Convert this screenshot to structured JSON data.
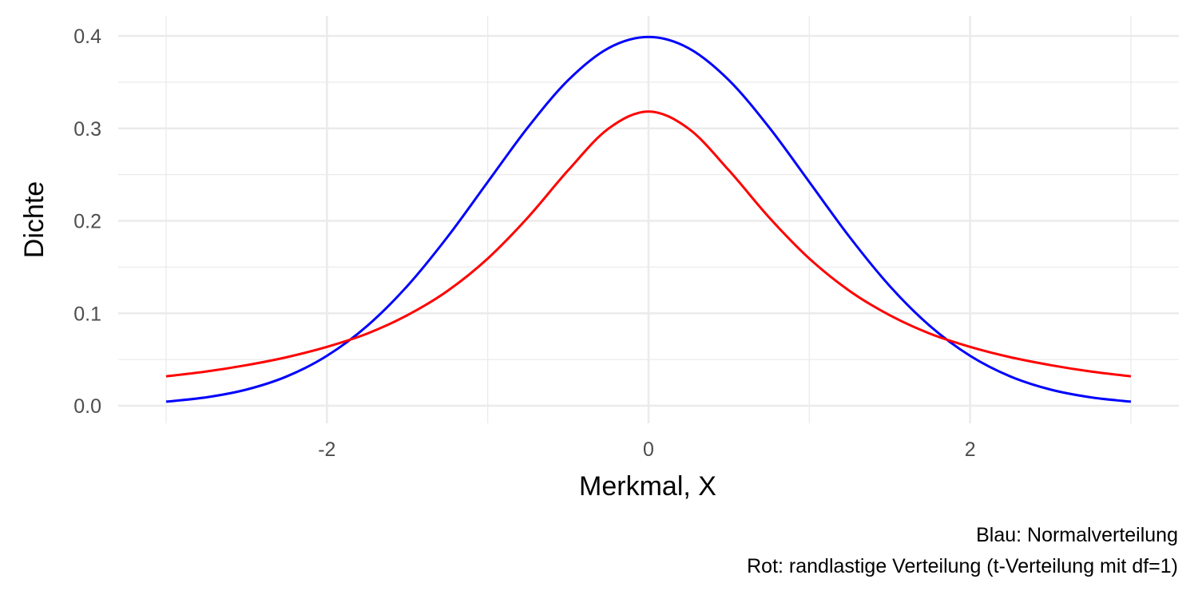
{
  "chart_data": {
    "type": "line",
    "xlabel": "Merkmal, X",
    "ylabel": "Dichte",
    "xlim": [
      -3,
      3
    ],
    "ylim": [
      0,
      0.4
    ],
    "x_ticks": [
      -2,
      0,
      2
    ],
    "x_tick_labels": [
      "-2",
      "0",
      "2"
    ],
    "y_ticks": [
      0.0,
      0.1,
      0.2,
      0.3,
      0.4
    ],
    "y_tick_labels": [
      "0.0",
      "0.1",
      "0.2",
      "0.3",
      "0.4"
    ],
    "grid": true,
    "caption": [
      "Blau: Normalverteilung",
      "Rot: randlastige Verteilung (t-Verteilung mit df=1)"
    ],
    "x": [
      -3.0,
      -2.75,
      -2.5,
      -2.25,
      -2.0,
      -1.75,
      -1.5,
      -1.25,
      -1.0,
      -0.75,
      -0.5,
      -0.25,
      0.0,
      0.25,
      0.5,
      0.75,
      1.0,
      1.25,
      1.5,
      1.75,
      2.0,
      2.25,
      2.5,
      2.75,
      3.0
    ],
    "series": [
      {
        "color": "#0000ff",
        "values": [
          0.0044,
          0.0091,
          0.0175,
          0.0317,
          0.054,
          0.0863,
          0.1295,
          0.1826,
          0.242,
          0.3011,
          0.3521,
          0.3867,
          0.3989,
          0.3867,
          0.3521,
          0.3011,
          0.242,
          0.1826,
          0.1295,
          0.0863,
          0.054,
          0.0317,
          0.0175,
          0.0091,
          0.0044
        ]
      },
      {
        "color": "#ff0000",
        "values": [
          0.0318,
          0.037,
          0.0439,
          0.0525,
          0.0637,
          0.078,
          0.0979,
          0.1242,
          0.1592,
          0.2037,
          0.2546,
          0.2996,
          0.3183,
          0.2996,
          0.2546,
          0.2037,
          0.1592,
          0.1242,
          0.0979,
          0.078,
          0.0637,
          0.0525,
          0.0439,
          0.037,
          0.0318
        ]
      }
    ]
  }
}
